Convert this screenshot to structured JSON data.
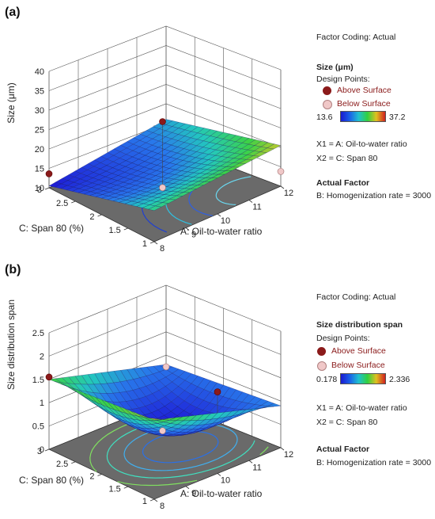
{
  "panels": [
    {
      "panel_label": "(a)",
      "legend": {
        "coding": "Factor Coding: Actual",
        "response": "Size (μm)",
        "design_points": "Design Points:",
        "above": "Above Surface",
        "below": "Below Surface",
        "range_min": "13.6",
        "range_max": "37.2",
        "x1": "X1 = A: Oil-to-water ratio",
        "x2": "X2 = C: Span 80",
        "actual_factor": "Actual Factor",
        "factor_value": "B: Homogenization rate = 3000"
      },
      "colors": {
        "low": "#2a2ad8",
        "mid": "#22c7a8",
        "high": "#d02020",
        "above_point": "#8b1a1a",
        "below_point": "#f0c8c8"
      }
    },
    {
      "panel_label": "(b)",
      "legend": {
        "coding": "Factor Coding: Actual",
        "response": "Size distribution span",
        "design_points": "Design Points:",
        "above": "Above Surface",
        "below": "Below Surface",
        "range_min": "0.178",
        "range_max": "2.336",
        "x1": "X1 = A: Oil-to-water ratio",
        "x2": "X2 = C: Span 80",
        "actual_factor": "Actual Factor",
        "factor_value": "B: Homogenization rate = 3000"
      },
      "colors": {
        "low": "#2a2ad8",
        "mid": "#22c7a8",
        "high": "#d02020",
        "above_point": "#8b1a1a",
        "below_point": "#f0c8c8"
      }
    }
  ],
  "chart_data": [
    {
      "type": "surface3d",
      "zlabel": "Size (μm)",
      "xlabel": "A: Oil-to-water ratio",
      "ylabel": "C: Span 80 (%)",
      "x_ticks": [
        "8",
        "9",
        "10",
        "11",
        "12"
      ],
      "y_ticks": [
        "1",
        "1.5",
        "2",
        "2.5",
        "3"
      ],
      "z_ticks": [
        "10",
        "15",
        "20",
        "25",
        "30",
        "35",
        "40"
      ],
      "xlim": [
        8,
        12
      ],
      "ylim": [
        1,
        3
      ],
      "zlim": [
        10,
        40
      ],
      "surface_corners": {
        "x8_y1": 18.0,
        "x12_y1": 20.5,
        "x12_y3": 16.0,
        "x8_y3": 10.5,
        "center": 14.5
      },
      "design_points": [
        {
          "x": 8,
          "y": 3,
          "z": 13.6,
          "type": "above"
        },
        {
          "x": 10,
          "y": 2,
          "z": 27.5,
          "type": "above"
        },
        {
          "x": 12,
          "y": 1,
          "z": 13.8,
          "type": "below"
        },
        {
          "x": 10,
          "y": 2,
          "z": 10.5,
          "type": "below"
        }
      ]
    },
    {
      "type": "surface3d",
      "zlabel": "Size distribution span",
      "xlabel": "A: Oil-to-water ratio",
      "ylabel": "C: Span 80 (%)",
      "x_ticks": [
        "8",
        "9",
        "10",
        "11",
        "12"
      ],
      "y_ticks": [
        "1",
        "1.5",
        "2",
        "2.5",
        "3"
      ],
      "z_ticks": [
        "0",
        "0.5",
        "1",
        "1.5",
        "2",
        "2.5"
      ],
      "xlim": [
        8,
        12
      ],
      "ylim": [
        1,
        3
      ],
      "zlim": [
        0,
        2.5
      ],
      "surface_corners": {
        "x8_y1": 1.7,
        "x12_y1": 0.9,
        "x12_y3": 0.8,
        "x8_y3": 1.5,
        "center": 0.35
      },
      "design_points": [
        {
          "x": 8,
          "y": 3,
          "z": 1.55,
          "type": "above"
        },
        {
          "x": 10,
          "y": 1,
          "z": 1.75,
          "type": "above"
        },
        {
          "x": 12,
          "y": 3,
          "z": 0.75,
          "type": "below"
        },
        {
          "x": 10,
          "y": 2,
          "z": 0.4,
          "type": "below"
        }
      ]
    }
  ]
}
